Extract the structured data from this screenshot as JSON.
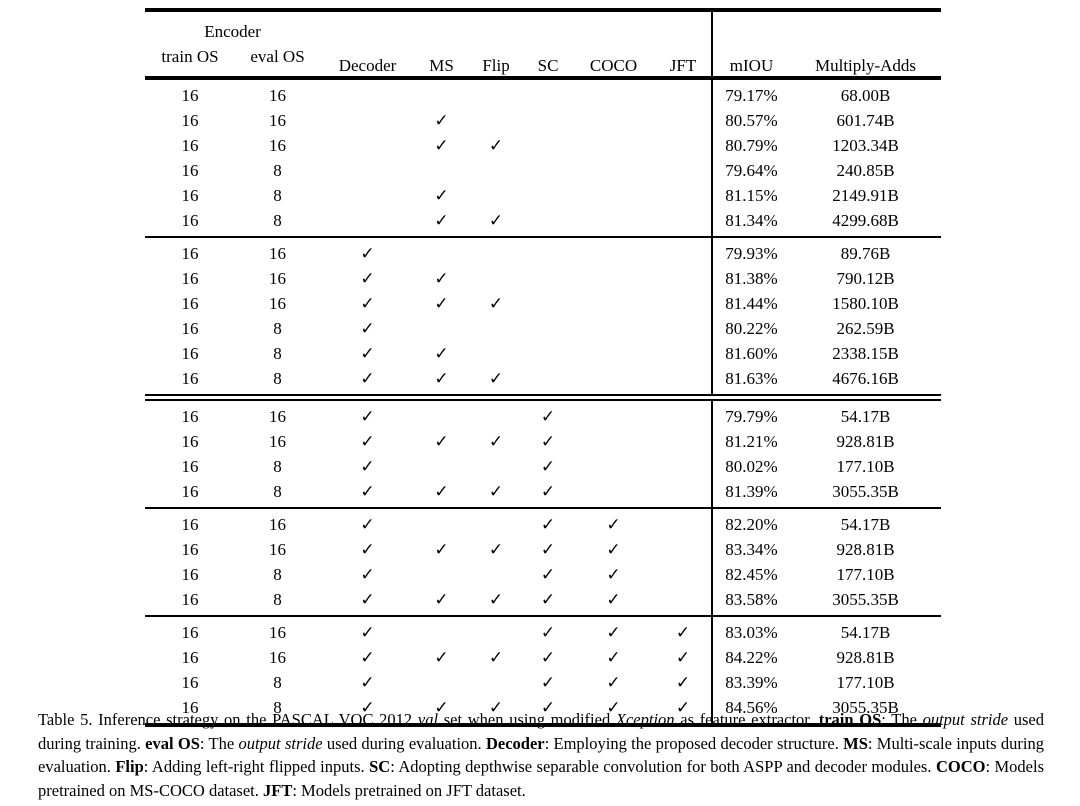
{
  "colors": {
    "background": "#ffffff",
    "text": "#000000",
    "rule": "#000000"
  },
  "table": {
    "check_glyph": "✓",
    "header": {
      "encoder_group": "Encoder",
      "sub_columns": [
        "train OS",
        "eval OS"
      ],
      "columns": [
        "Decoder",
        "MS",
        "Flip",
        "SC",
        "COCO",
        "JFT",
        "mIOU",
        "Multiply-Adds"
      ]
    },
    "groups": [
      {
        "double_rule_above": false,
        "rows": [
          {
            "train_os": "16",
            "eval_os": "16",
            "decoder": false,
            "ms": false,
            "flip": false,
            "sc": false,
            "coco": false,
            "jft": false,
            "miou": "79.17%",
            "multiply_adds": "68.00B"
          },
          {
            "train_os": "16",
            "eval_os": "16",
            "decoder": false,
            "ms": true,
            "flip": false,
            "sc": false,
            "coco": false,
            "jft": false,
            "miou": "80.57%",
            "multiply_adds": "601.74B"
          },
          {
            "train_os": "16",
            "eval_os": "16",
            "decoder": false,
            "ms": true,
            "flip": true,
            "sc": false,
            "coco": false,
            "jft": false,
            "miou": "80.79%",
            "multiply_adds": "1203.34B"
          },
          {
            "train_os": "16",
            "eval_os": "8",
            "decoder": false,
            "ms": false,
            "flip": false,
            "sc": false,
            "coco": false,
            "jft": false,
            "miou": "79.64%",
            "multiply_adds": "240.85B"
          },
          {
            "train_os": "16",
            "eval_os": "8",
            "decoder": false,
            "ms": true,
            "flip": false,
            "sc": false,
            "coco": false,
            "jft": false,
            "miou": "81.15%",
            "multiply_adds": "2149.91B"
          },
          {
            "train_os": "16",
            "eval_os": "8",
            "decoder": false,
            "ms": true,
            "flip": true,
            "sc": false,
            "coco": false,
            "jft": false,
            "miou": "81.34%",
            "multiply_adds": "4299.68B"
          }
        ]
      },
      {
        "double_rule_above": false,
        "rows": [
          {
            "train_os": "16",
            "eval_os": "16",
            "decoder": true,
            "ms": false,
            "flip": false,
            "sc": false,
            "coco": false,
            "jft": false,
            "miou": "79.93%",
            "multiply_adds": "89.76B"
          },
          {
            "train_os": "16",
            "eval_os": "16",
            "decoder": true,
            "ms": true,
            "flip": false,
            "sc": false,
            "coco": false,
            "jft": false,
            "miou": "81.38%",
            "multiply_adds": "790.12B"
          },
          {
            "train_os": "16",
            "eval_os": "16",
            "decoder": true,
            "ms": true,
            "flip": true,
            "sc": false,
            "coco": false,
            "jft": false,
            "miou": "81.44%",
            "multiply_adds": "1580.10B"
          },
          {
            "train_os": "16",
            "eval_os": "8",
            "decoder": true,
            "ms": false,
            "flip": false,
            "sc": false,
            "coco": false,
            "jft": false,
            "miou": "80.22%",
            "multiply_adds": "262.59B"
          },
          {
            "train_os": "16",
            "eval_os": "8",
            "decoder": true,
            "ms": true,
            "flip": false,
            "sc": false,
            "coco": false,
            "jft": false,
            "miou": "81.60%",
            "multiply_adds": "2338.15B"
          },
          {
            "train_os": "16",
            "eval_os": "8",
            "decoder": true,
            "ms": true,
            "flip": true,
            "sc": false,
            "coco": false,
            "jft": false,
            "miou": "81.63%",
            "multiply_adds": "4676.16B"
          }
        ]
      },
      {
        "double_rule_above": true,
        "rows": [
          {
            "train_os": "16",
            "eval_os": "16",
            "decoder": true,
            "ms": false,
            "flip": false,
            "sc": true,
            "coco": false,
            "jft": false,
            "miou": "79.79%",
            "multiply_adds": "54.17B"
          },
          {
            "train_os": "16",
            "eval_os": "16",
            "decoder": true,
            "ms": true,
            "flip": true,
            "sc": true,
            "coco": false,
            "jft": false,
            "miou": "81.21%",
            "multiply_adds": "928.81B"
          },
          {
            "train_os": "16",
            "eval_os": "8",
            "decoder": true,
            "ms": false,
            "flip": false,
            "sc": true,
            "coco": false,
            "jft": false,
            "miou": "80.02%",
            "multiply_adds": "177.10B"
          },
          {
            "train_os": "16",
            "eval_os": "8",
            "decoder": true,
            "ms": true,
            "flip": true,
            "sc": true,
            "coco": false,
            "jft": false,
            "miou": "81.39%",
            "multiply_adds": "3055.35B"
          }
        ]
      },
      {
        "double_rule_above": false,
        "rows": [
          {
            "train_os": "16",
            "eval_os": "16",
            "decoder": true,
            "ms": false,
            "flip": false,
            "sc": true,
            "coco": true,
            "jft": false,
            "miou": "82.20%",
            "multiply_adds": "54.17B"
          },
          {
            "train_os": "16",
            "eval_os": "16",
            "decoder": true,
            "ms": true,
            "flip": true,
            "sc": true,
            "coco": true,
            "jft": false,
            "miou": "83.34%",
            "multiply_adds": "928.81B"
          },
          {
            "train_os": "16",
            "eval_os": "8",
            "decoder": true,
            "ms": false,
            "flip": false,
            "sc": true,
            "coco": true,
            "jft": false,
            "miou": "82.45%",
            "multiply_adds": "177.10B"
          },
          {
            "train_os": "16",
            "eval_os": "8",
            "decoder": true,
            "ms": true,
            "flip": true,
            "sc": true,
            "coco": true,
            "jft": false,
            "miou": "83.58%",
            "multiply_adds": "3055.35B"
          }
        ]
      },
      {
        "double_rule_above": false,
        "rows": [
          {
            "train_os": "16",
            "eval_os": "16",
            "decoder": true,
            "ms": false,
            "flip": false,
            "sc": true,
            "coco": true,
            "jft": true,
            "miou": "83.03%",
            "multiply_adds": "54.17B"
          },
          {
            "train_os": "16",
            "eval_os": "16",
            "decoder": true,
            "ms": true,
            "flip": true,
            "sc": true,
            "coco": true,
            "jft": true,
            "miou": "84.22%",
            "multiply_adds": "928.81B"
          },
          {
            "train_os": "16",
            "eval_os": "8",
            "decoder": true,
            "ms": false,
            "flip": false,
            "sc": true,
            "coco": true,
            "jft": true,
            "miou": "83.39%",
            "multiply_adds": "177.10B"
          },
          {
            "train_os": "16",
            "eval_os": "8",
            "decoder": true,
            "ms": true,
            "flip": true,
            "sc": true,
            "coco": true,
            "jft": true,
            "miou": "84.56%",
            "multiply_adds": "3055.35B"
          }
        ]
      }
    ]
  },
  "caption": {
    "segments": [
      {
        "text": "Table 5. Inference strategy on the PASCAL VOC 2012 ",
        "style": "normal"
      },
      {
        "text": "val",
        "style": "italic"
      },
      {
        "text": " set when using modified ",
        "style": "normal"
      },
      {
        "text": "Xception",
        "style": "italic"
      },
      {
        "text": " as feature extractor. ",
        "style": "normal"
      },
      {
        "text": "train OS",
        "style": "bold"
      },
      {
        "text": ": The ",
        "style": "normal"
      },
      {
        "text": "output stride",
        "style": "italic"
      },
      {
        "text": " used during training. ",
        "style": "normal"
      },
      {
        "text": "eval OS",
        "style": "bold"
      },
      {
        "text": ": The ",
        "style": "normal"
      },
      {
        "text": "output stride",
        "style": "italic"
      },
      {
        "text": " used during evaluation. ",
        "style": "normal"
      },
      {
        "text": "Decoder",
        "style": "bold"
      },
      {
        "text": ": Employing the proposed decoder structure. ",
        "style": "normal"
      },
      {
        "text": "MS",
        "style": "bold"
      },
      {
        "text": ": Multi-scale inputs during evaluation. ",
        "style": "normal"
      },
      {
        "text": "Flip",
        "style": "bold"
      },
      {
        "text": ": Adding left-right flipped inputs. ",
        "style": "normal"
      },
      {
        "text": "SC",
        "style": "bold"
      },
      {
        "text": ": Adopting depthwise separable convolution for both ASPP and decoder modules. ",
        "style": "normal"
      },
      {
        "text": "COCO",
        "style": "bold"
      },
      {
        "text": ": Models pretrained on MS-COCO dataset. ",
        "style": "normal"
      },
      {
        "text": "JFT",
        "style": "bold"
      },
      {
        "text": ": Models pretrained on JFT dataset.",
        "style": "normal"
      }
    ]
  }
}
